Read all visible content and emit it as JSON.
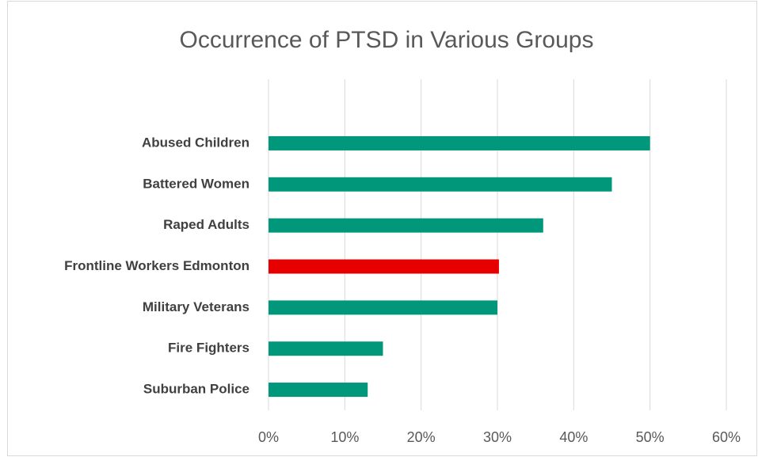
{
  "chart_data": {
    "type": "barh",
    "title": "Occurrence of PTSD in Various Groups",
    "categories": [
      "Abused Children",
      "Battered Women",
      "Raped Adults",
      "Frontline Workers Edmonton",
      "Military Veterans",
      "Fire Fighters",
      "Suburban Police"
    ],
    "values": [
      50,
      45,
      36,
      30.2,
      30,
      15,
      13
    ],
    "colors": [
      "#00977a",
      "#00977a",
      "#00977a",
      "#e60000",
      "#00977a",
      "#00977a",
      "#00977a"
    ],
    "xlim": [
      0,
      60
    ],
    "xticks": [
      {
        "value": 0,
        "label": "0%"
      },
      {
        "value": 10,
        "label": "10%"
      },
      {
        "value": 20,
        "label": "20%"
      },
      {
        "value": 30,
        "label": "30%"
      },
      {
        "value": 40,
        "label": "40%"
      },
      {
        "value": 50,
        "label": "50%"
      },
      {
        "value": 60,
        "label": "60%"
      }
    ],
    "grid": true
  }
}
